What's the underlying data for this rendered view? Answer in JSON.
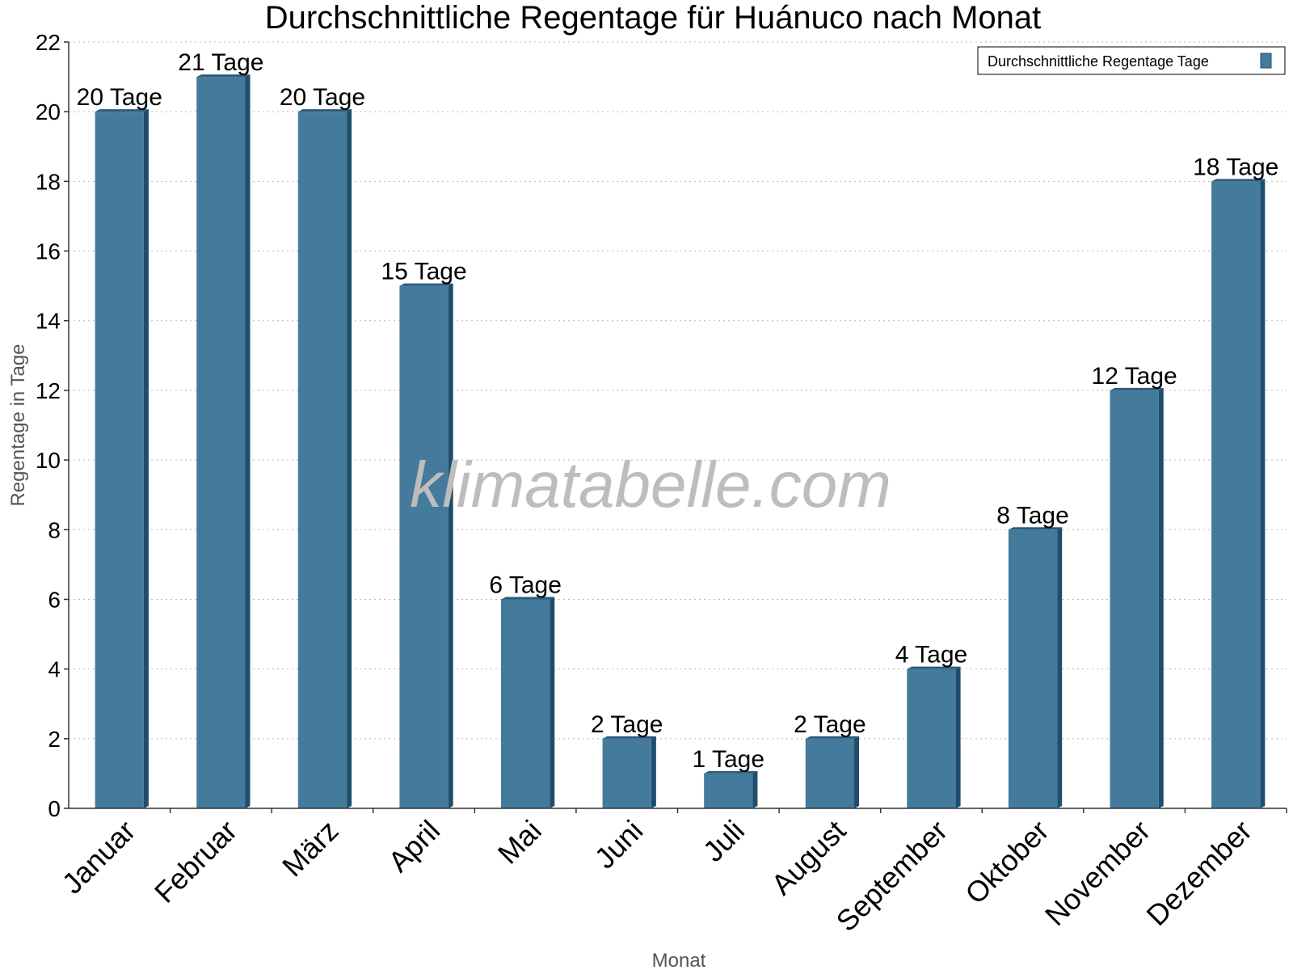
{
  "chart_data": {
    "type": "bar",
    "title": "Durchschnittliche Regentage für Huánuco nach Monat",
    "xlabel": "Monat",
    "ylabel": "Regentage in Tage",
    "categories": [
      "Januar",
      "Februar",
      "März",
      "April",
      "Mai",
      "Juni",
      "Juli",
      "August",
      "September",
      "Oktober",
      "November",
      "Dezember"
    ],
    "series": [
      {
        "name": "Durchschnittliche Regentage Tage",
        "values": [
          20,
          21,
          20,
          15,
          6,
          2,
          1,
          2,
          4,
          8,
          12,
          18
        ],
        "data_labels": [
          "20 Tage",
          "21 Tage",
          "20 Tage",
          "15 Tage",
          "6 Tage",
          "2 Tage",
          "1 Tage",
          "2 Tage",
          "4 Tage",
          "8 Tage",
          "12 Tage",
          "18 Tage"
        ]
      }
    ],
    "ylim": [
      0,
      22
    ],
    "yticks": [
      0,
      2,
      4,
      6,
      8,
      10,
      12,
      14,
      16,
      18,
      20,
      22
    ],
    "grid": true,
    "legend_position": "top-right",
    "colors": {
      "bar": "#447a9c",
      "bar_side": "#1f4d6e",
      "bar_top": "#2a5b7d"
    },
    "watermark": "klimatabelle.com"
  }
}
